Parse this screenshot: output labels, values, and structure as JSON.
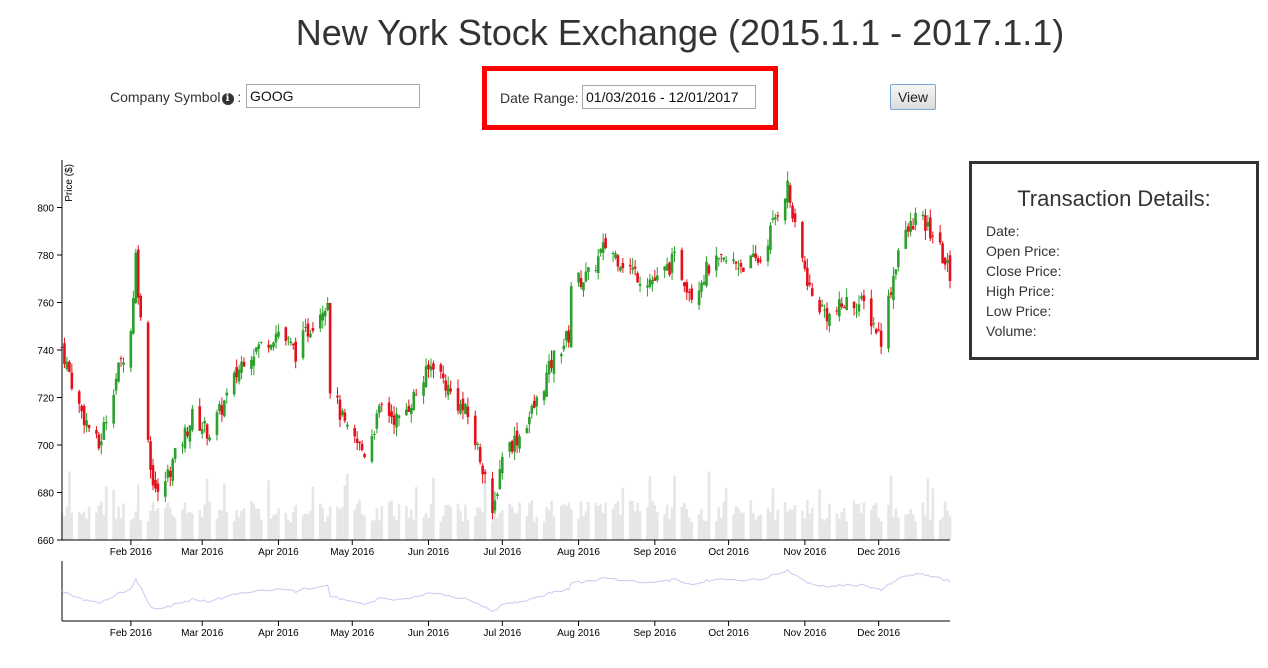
{
  "page": {
    "title": "New York Stock Exchange (2015.1.1 - 2017.1.1)"
  },
  "form": {
    "company_label": "Company Symbol",
    "company_label_suffix": " :",
    "info_icon": "info-circle-icon",
    "company_value": "GOOG",
    "date_range_label": "Date Range:",
    "date_range_value": "01/03/2016 - 12/01/2017",
    "view_label": "View"
  },
  "details": {
    "title": "Transaction Details:",
    "date_label": "Date:",
    "open_label": "Open Price:",
    "close_label": "Close Price:",
    "high_label": "High Price:",
    "low_label": "Low Price:",
    "volume_label": "Volume:"
  },
  "colors": {
    "up": "#2ca02c",
    "down": "#e3111b",
    "volume": "#e6e6e6",
    "context_line": "#c9c9f2",
    "highlight": "#ff0000"
  },
  "chart_data": {
    "type": "candlestick",
    "ylabel": "Price ($)",
    "ylim": [
      660,
      820
    ],
    "yticks": [
      "660",
      "680",
      "700",
      "720",
      "740",
      "760",
      "780",
      "800"
    ],
    "xrange": [
      "2016-01-04",
      "2016-12-30"
    ],
    "xticks": [
      {
        "date": "2016-02-01",
        "label": "Feb 2016"
      },
      {
        "date": "2016-03-01",
        "label": "Mar 2016"
      },
      {
        "date": "2016-04-01",
        "label": "Apr 2016"
      },
      {
        "date": "2016-05-01",
        "label": "May 2016"
      },
      {
        "date": "2016-06-01",
        "label": "Jun 2016"
      },
      {
        "date": "2016-07-01",
        "label": "Jul 2016"
      },
      {
        "date": "2016-08-01",
        "label": "Aug 2016"
      },
      {
        "date": "2016-09-01",
        "label": "Sep 2016"
      },
      {
        "date": "2016-10-01",
        "label": "Oct 2016"
      },
      {
        "date": "2016-11-01",
        "label": "Nov 2016"
      },
      {
        "date": "2016-12-01",
        "label": "Dec 2016"
      }
    ],
    "close_series": [
      [
        "2016-01-04",
        741
      ],
      [
        "2016-01-11",
        716
      ],
      [
        "2016-01-19",
        699
      ],
      [
        "2016-01-25",
        725
      ],
      [
        "2016-02-01",
        748
      ],
      [
        "2016-02-03",
        780
      ],
      [
        "2016-02-05",
        752
      ],
      [
        "2016-02-09",
        690
      ],
      [
        "2016-02-12",
        678
      ],
      [
        "2016-02-19",
        695
      ],
      [
        "2016-02-26",
        712
      ],
      [
        "2016-03-04",
        705
      ],
      [
        "2016-03-11",
        720
      ],
      [
        "2016-03-18",
        737
      ],
      [
        "2016-03-25",
        742
      ],
      [
        "2016-04-01",
        748
      ],
      [
        "2016-04-08",
        739
      ],
      [
        "2016-04-15",
        752
      ],
      [
        "2016-04-21",
        762
      ],
      [
        "2016-04-22",
        725
      ],
      [
        "2016-04-29",
        705
      ],
      [
        "2016-05-06",
        697
      ],
      [
        "2016-05-13",
        716
      ],
      [
        "2016-05-20",
        710
      ],
      [
        "2016-05-27",
        722
      ],
      [
        "2016-06-03",
        735
      ],
      [
        "2016-06-10",
        722
      ],
      [
        "2016-06-17",
        712
      ],
      [
        "2016-06-24",
        688
      ],
      [
        "2016-06-27",
        668
      ],
      [
        "2016-07-01",
        697
      ],
      [
        "2016-07-08",
        704
      ],
      [
        "2016-07-15",
        718
      ],
      [
        "2016-07-22",
        737
      ],
      [
        "2016-07-28",
        746
      ],
      [
        "2016-07-29",
        768
      ],
      [
        "2016-08-05",
        771
      ],
      [
        "2016-08-12",
        784
      ],
      [
        "2016-08-19",
        777
      ],
      [
        "2016-08-26",
        771
      ],
      [
        "2016-09-02",
        769
      ],
      [
        "2016-09-09",
        778
      ],
      [
        "2016-09-16",
        764
      ],
      [
        "2016-09-23",
        775
      ],
      [
        "2016-09-30",
        777
      ],
      [
        "2016-10-07",
        776
      ],
      [
        "2016-10-14",
        778
      ],
      [
        "2016-10-21",
        799
      ],
      [
        "2016-10-25",
        809
      ],
      [
        "2016-10-28",
        790
      ],
      [
        "2016-11-04",
        762
      ],
      [
        "2016-11-11",
        754
      ],
      [
        "2016-11-18",
        760
      ],
      [
        "2016-11-25",
        759
      ],
      [
        "2016-12-02",
        745
      ],
      [
        "2016-12-09",
        782
      ],
      [
        "2016-12-16",
        796
      ],
      [
        "2016-12-23",
        789
      ],
      [
        "2016-12-30",
        772
      ]
    ],
    "volume_note": "daily volume bars"
  }
}
